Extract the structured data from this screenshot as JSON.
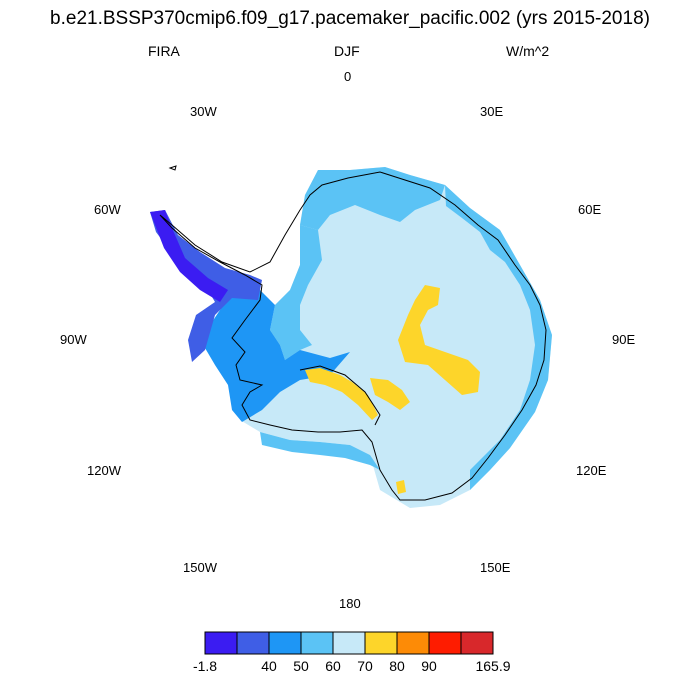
{
  "header": {
    "title": "b.e21.BSSP370cmip6.f09_g17.pacemaker_pacific.002 (yrs 2015-2018)",
    "variable": "FIRA",
    "season": "DJF",
    "units": "W/m^2"
  },
  "longitude_labels": {
    "lon_0": "0",
    "lon_30E": "30E",
    "lon_60E": "60E",
    "lon_90E": "90E",
    "lon_120E": "120E",
    "lon_150E": "150E",
    "lon_180": "180",
    "lon_150W": "150W",
    "lon_120W": "120W",
    "lon_90W": "90W",
    "lon_60W": "60W",
    "lon_30W": "30W"
  },
  "colorbar": {
    "colors": [
      "#3b1cf2",
      "#3f5ee6",
      "#1e96f5",
      "#5bc3f5",
      "#c7e9f8",
      "#fdd52a",
      "#fd8b06",
      "#fe1c00",
      "#d8282b"
    ],
    "labels": [
      "-1.8",
      "40",
      "50",
      "60",
      "70",
      "80",
      "90",
      "165.9"
    ]
  },
  "map_colors": {
    "dominant_interior": "#c7e9f8",
    "coast_band": "#5bc3f5",
    "west_antarctica": "#1e96f5",
    "peninsula": "#3f5ee6",
    "high_values": "#fdd52a"
  }
}
